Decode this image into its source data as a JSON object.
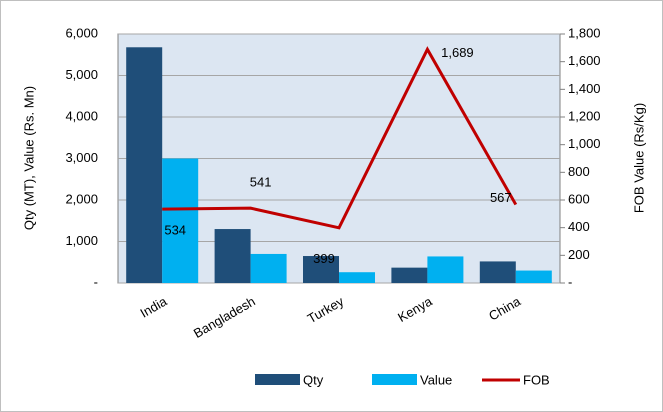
{
  "chart_data": {
    "type": "bar_line",
    "categories": [
      "India",
      "Bangladesh",
      "Turkey",
      "Kenya",
      "China"
    ],
    "y_label": "Qty (MT), Value (Rs. Mn)",
    "y2_label": "FOB Value (Rs/Kg)",
    "series": [
      {
        "name": "Qty",
        "type": "bar",
        "color": "#1f4e79",
        "values": [
          5680,
          1300,
          650,
          370,
          520
        ]
      },
      {
        "name": "Value",
        "type": "bar",
        "color": "#00b0f0",
        "values": [
          3000,
          700,
          260,
          640,
          300
        ]
      },
      {
        "name": "FOB",
        "type": "line",
        "axis": "y2",
        "color": "#c00000",
        "values": [
          534,
          541,
          399,
          1689,
          567
        ],
        "value_labels": [
          "534",
          "541",
          "399",
          "1,689",
          "567"
        ]
      }
    ],
    "ylim": [
      0,
      6000
    ],
    "yticks": [
      {
        "value": 0,
        "label": "-"
      },
      {
        "value": 1000,
        "label": "1,000"
      },
      {
        "value": 2000,
        "label": "2,000"
      },
      {
        "value": 3000,
        "label": "3,000"
      },
      {
        "value": 4000,
        "label": "4,000"
      },
      {
        "value": 5000,
        "label": "5,000"
      },
      {
        "value": 6000,
        "label": "6,000"
      }
    ],
    "y2lim": [
      0,
      1800
    ],
    "y2ticks": [
      {
        "value": 0,
        "label": "-"
      },
      200,
      400,
      600,
      800,
      {
        "value": 1000,
        "label": "1,000"
      },
      {
        "value": 1200,
        "label": "1,200"
      },
      {
        "value": 1400,
        "label": "1,400"
      },
      {
        "value": 1600,
        "label": "1,600"
      },
      {
        "value": 1800,
        "label": "1,800"
      }
    ],
    "grid": true,
    "legend": "bottom"
  }
}
